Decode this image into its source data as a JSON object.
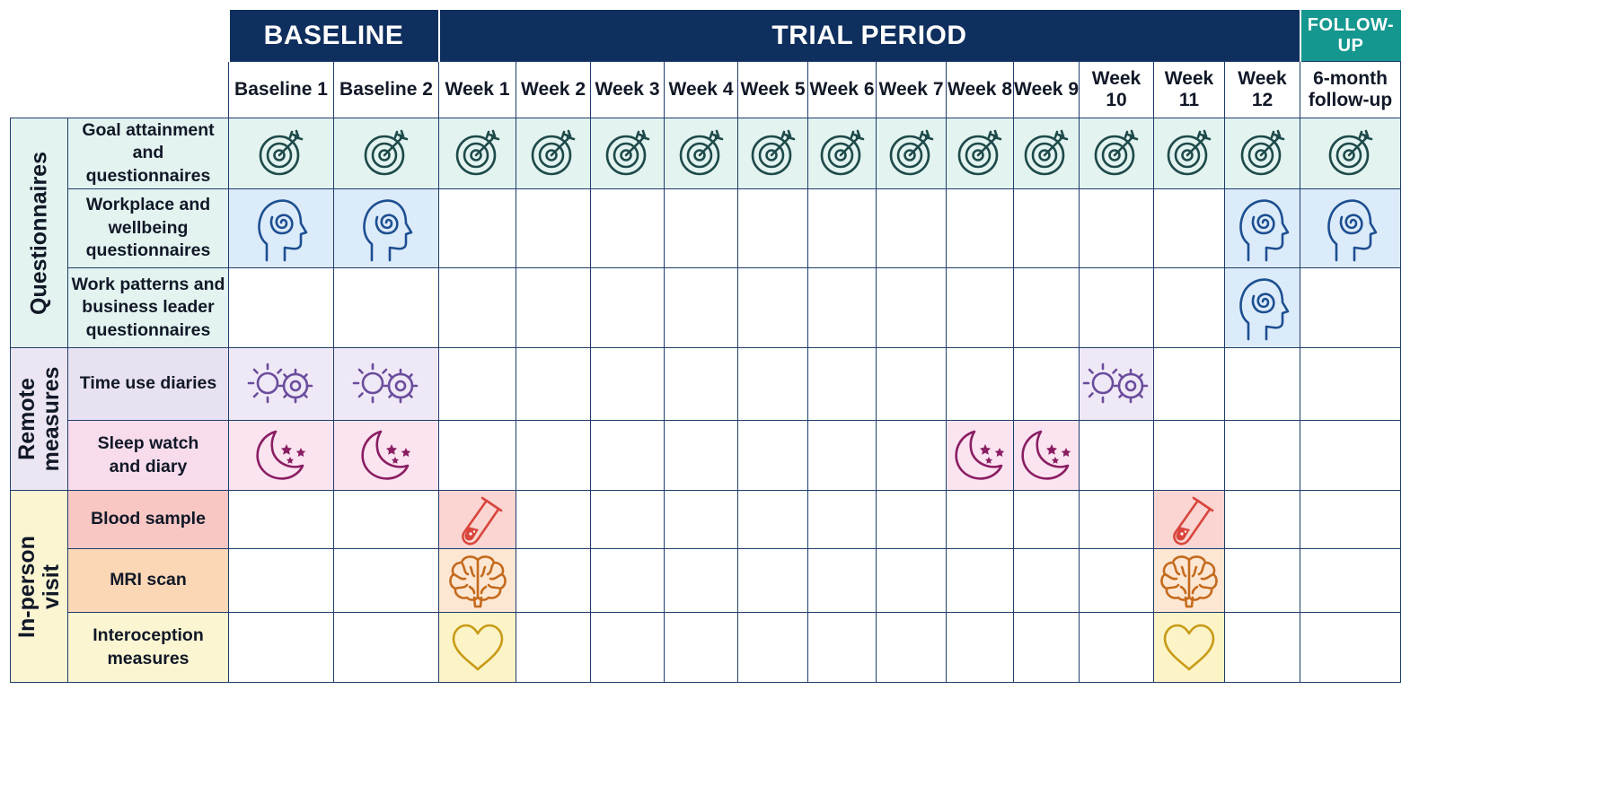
{
  "phases": [
    {
      "label": "BASELINE",
      "span": 2,
      "color": "#0f2f5e"
    },
    {
      "label": "TRIAL PERIOD",
      "span": 12,
      "color": "#0f2f5e"
    },
    {
      "label": "FOLLOW-UP",
      "span": 1,
      "color": "#14978f"
    }
  ],
  "columns": [
    "Baseline 1",
    "Baseline 2",
    "Week 1",
    "Week 2",
    "Week 3",
    "Week 4",
    "Week 5",
    "Week 6",
    "Week 7",
    "Week 8",
    "Week 9",
    "Week 10",
    "Week 11",
    "Week 12",
    "6-month\nfollow-up"
  ],
  "sections": [
    {
      "label": "Questionnaires",
      "label_bg": "#e3f3f0"
    },
    {
      "label": "Remote\nmeasures",
      "label_bg": "#ece6f3"
    },
    {
      "label": "In-person\nvisit",
      "label_bg": "#fbf5d2"
    }
  ],
  "rows": [
    {
      "label": "Goal attainment\nand questionnaires",
      "section": 0,
      "icon": "target-icon",
      "icon_color": "#1e4a4a",
      "label_bg": "#e3f3f0",
      "cell_bg": "#e3f3f0",
      "height": 79,
      "marks": [
        1,
        1,
        1,
        1,
        1,
        1,
        1,
        1,
        1,
        1,
        1,
        1,
        1,
        1,
        1
      ]
    },
    {
      "label": "Workplace and\nwellbeing\nquestionnaires",
      "section": 0,
      "icon": "head-spiral-icon",
      "icon_color": "#1d4f91",
      "label_bg": "#e3f3f0",
      "cell_bg": "#dcebfa",
      "height": 88,
      "marks": [
        1,
        1,
        0,
        0,
        0,
        0,
        0,
        0,
        0,
        0,
        0,
        0,
        0,
        1,
        1
      ]
    },
    {
      "label": "Work patterns and\nbusiness leader\nquestionnaires",
      "section": 0,
      "icon": "head-spiral-icon",
      "icon_color": "#1d4f91",
      "label_bg": "#e3f3f0",
      "cell_bg": "#dcebfa",
      "height": 89,
      "marks": [
        0,
        0,
        0,
        0,
        0,
        0,
        0,
        0,
        0,
        0,
        0,
        0,
        0,
        1,
        0
      ]
    },
    {
      "label": "Time use diaries",
      "section": 1,
      "icon": "sun-gear-icon",
      "icon_color": "#6a4c9c",
      "label_bg": "#e8e1f1",
      "cell_bg": "#efe8f6",
      "height": 81,
      "marks": [
        1,
        1,
        0,
        0,
        0,
        0,
        0,
        0,
        0,
        0,
        0,
        1,
        0,
        0,
        0
      ]
    },
    {
      "label": "Sleep watch\nand diary",
      "section": 1,
      "icon": "moon-stars-icon",
      "icon_color": "#8a1d62",
      "label_bg": "#f8dcec",
      "cell_bg": "#fbe3f0",
      "height": 78,
      "marks": [
        1,
        1,
        0,
        0,
        0,
        0,
        0,
        0,
        0,
        1,
        1,
        0,
        0,
        0,
        0
      ]
    },
    {
      "label": "Blood sample",
      "section": 2,
      "icon": "test-tube-icon",
      "icon_color": "#d9463d",
      "label_bg": "#f8c7c4",
      "cell_bg": "#fbd5d2",
      "height": 65,
      "marks": [
        0,
        0,
        1,
        0,
        0,
        0,
        0,
        0,
        0,
        0,
        0,
        0,
        1,
        0,
        0
      ]
    },
    {
      "label": "MRI scan",
      "section": 2,
      "icon": "brain-icon",
      "icon_color": "#c46a1c",
      "label_bg": "#fbd7b6",
      "cell_bg": "#fde6d2",
      "height": 71,
      "marks": [
        0,
        0,
        1,
        0,
        0,
        0,
        0,
        0,
        0,
        0,
        0,
        0,
        1,
        0,
        0
      ]
    },
    {
      "label": "Interoception\nmeasures",
      "section": 2,
      "icon": "heart-icon",
      "icon_color": "#c99a16",
      "label_bg": "#fbf5d2",
      "cell_bg": "#fcf4c6",
      "height": 78,
      "marks": [
        0,
        0,
        1,
        0,
        0,
        0,
        0,
        0,
        0,
        0,
        0,
        0,
        1,
        0,
        0
      ]
    }
  ]
}
